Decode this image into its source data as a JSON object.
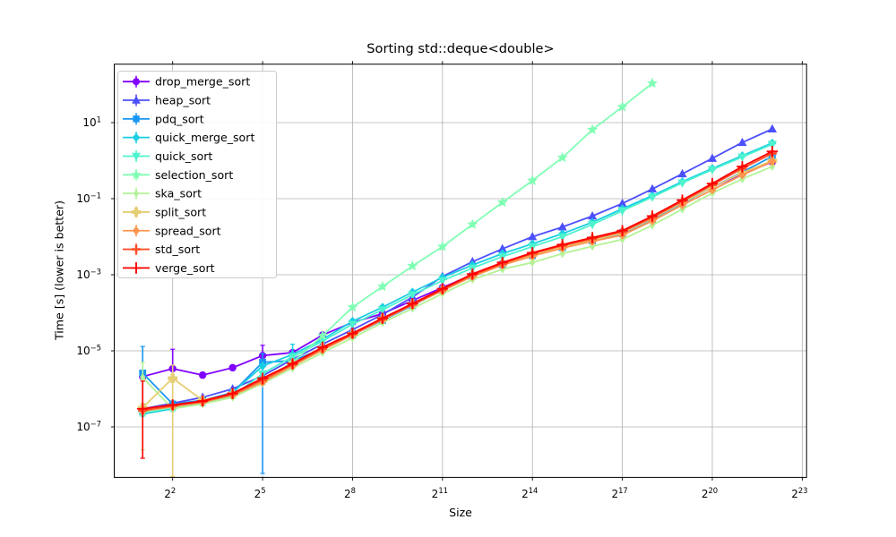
{
  "chart_data": {
    "type": "line",
    "title": "Sorting std::deque<double>",
    "xlabel": "Size",
    "ylabel": "Time [s] (lower is better)",
    "x_scale": "log2",
    "y_scale": "log10",
    "grid": true,
    "legend_position": "upper left",
    "x_tick_base": "2",
    "x_tick_exponents": [
      2,
      5,
      8,
      11,
      14,
      17,
      20,
      23
    ],
    "y_tick_base": "10",
    "y_tick_exponents": [
      1,
      -1,
      -3,
      -5,
      -7
    ],
    "x_range_log2": [
      0.05,
      23.14
    ],
    "y_range_log10": [
      -8.32,
      2.53
    ],
    "sizes_log2": [
      1,
      2,
      3,
      4,
      5,
      6,
      7,
      8,
      9,
      10,
      11,
      12,
      13,
      14,
      15,
      16,
      17,
      18,
      19,
      20,
      21,
      22
    ],
    "units": "seconds",
    "series": [
      {
        "name": "drop_merge_sort",
        "color": "#8000FF",
        "marker": "circle",
        "values": [
          2.1e-06,
          3.4e-06,
          2.3e-06,
          3.6e-06,
          7.5e-06,
          9e-06,
          2.6e-05,
          5.6e-05,
          9.5e-05,
          0.00021,
          0.00046,
          0.001,
          0.002,
          0.0034,
          0.0056,
          0.0086,
          0.0135,
          0.031,
          0.08,
          0.2,
          0.45,
          0.92
        ]
      },
      {
        "name": "heap_sort",
        "color": "#4D4FFC",
        "marker": "triangle-up",
        "values": [
          3e-07,
          4.2e-07,
          6e-07,
          1e-06,
          2.2e-06,
          6e-06,
          1.5e-05,
          3.6e-05,
          9e-05,
          0.00026,
          0.0009,
          0.0022,
          0.0048,
          0.01,
          0.018,
          0.035,
          0.075,
          0.18,
          0.45,
          1.15,
          3.0,
          6.8
        ]
      },
      {
        "name": "pdq_sort",
        "color": "#1A96F3",
        "marker": "square",
        "values": [
          2.6e-06,
          4e-07,
          5e-07,
          8e-07,
          5e-06,
          5.5e-06,
          1.15e-05,
          2.6e-05,
          6.3e-05,
          0.000155,
          0.0004,
          0.00092,
          0.00185,
          0.0032,
          0.0052,
          0.0079,
          0.012,
          0.029,
          0.076,
          0.2,
          0.5,
          1.3
        ]
      },
      {
        "name": "quick_merge_sort",
        "color": "#19CEE3",
        "marker": "diamond",
        "values": [
          2.2e-07,
          3e-07,
          4.5e-07,
          8e-07,
          4e-06,
          8e-06,
          2e-05,
          6e-05,
          0.00014,
          0.00035,
          0.00085,
          0.0018,
          0.0036,
          0.0065,
          0.012,
          0.024,
          0.054,
          0.12,
          0.28,
          0.62,
          1.35,
          2.9
        ]
      },
      {
        "name": "quick_sort",
        "color": "#4DF3CE",
        "marker": "triangle-down",
        "values": [
          2.4e-07,
          3.2e-07,
          4.2e-07,
          6.5e-07,
          2.5e-06,
          7e-06,
          1.8e-05,
          5e-05,
          0.00012,
          0.0003,
          0.0007,
          0.0015,
          0.003,
          0.0055,
          0.01,
          0.021,
          0.048,
          0.11,
          0.26,
          0.58,
          1.25,
          2.7
        ]
      },
      {
        "name": "selection_sort",
        "color": "#80FFB4",
        "marker": "star",
        "values": [
          2.4e-07,
          3.3e-07,
          4.5e-07,
          7e-07,
          1.6e-06,
          5e-06,
          2.5e-05,
          0.00014,
          0.00049,
          0.0017,
          0.0055,
          0.021,
          0.08,
          0.3,
          1.2,
          6.5,
          26.0,
          108.0
        ]
      },
      {
        "name": "ska_sort",
        "color": "#B3F396",
        "marker": "thin-diamond",
        "values": [
          2e-06,
          3e-07,
          4e-07,
          6e-07,
          1.4e-06,
          3.5e-06,
          9e-06,
          2.2e-05,
          5.5e-05,
          0.00013,
          0.00032,
          0.00075,
          0.0014,
          0.0021,
          0.0036,
          0.0056,
          0.0085,
          0.02,
          0.053,
          0.14,
          0.33,
          0.7
        ]
      },
      {
        "name": "split_sort",
        "color": "#E6CE74",
        "marker": "filled-plus",
        "values": [
          3.2e-07,
          1.9e-06,
          5e-07,
          7.5e-07,
          1.6e-06,
          4.5e-06,
          1.2e-05,
          2.8e-05,
          7e-05,
          0.00017,
          0.0004,
          0.00095,
          0.0019,
          0.0033,
          0.0054,
          0.0082,
          0.0125,
          0.03,
          0.079,
          0.2,
          0.48,
          1.0
        ]
      },
      {
        "name": "spread_sort",
        "color": "#FF964F",
        "marker": "diamond",
        "values": [
          2.6e-07,
          3.4e-07,
          4.4e-07,
          6.8e-07,
          1.5e-06,
          4e-06,
          1.05e-05,
          2.6e-05,
          6.5e-05,
          0.00016,
          0.00038,
          0.0009,
          0.0018,
          0.0031,
          0.005,
          0.0076,
          0.011,
          0.026,
          0.068,
          0.17,
          0.42,
          0.95
        ]
      },
      {
        "name": "std_sort",
        "color": "#FF4F28",
        "marker": "plus-bold",
        "values": [
          2.7e-07,
          3.6e-07,
          4.6e-07,
          7.2e-07,
          1.7e-06,
          4.4e-06,
          1.15e-05,
          2.75e-05,
          6.8e-05,
          0.000165,
          0.00041,
          0.00098,
          0.00195,
          0.0036,
          0.0058,
          0.0088,
          0.0135,
          0.032,
          0.085,
          0.23,
          0.62,
          1.55
        ]
      },
      {
        "name": "verge_sort",
        "color": "#FF0000",
        "marker": "plus",
        "values": [
          3e-07,
          3.8e-07,
          4.8e-07,
          7.6e-07,
          1.9e-06,
          4.6e-06,
          1.25e-05,
          2.9e-05,
          7.2e-05,
          0.000175,
          0.00043,
          0.00105,
          0.0021,
          0.0038,
          0.0062,
          0.0095,
          0.0145,
          0.035,
          0.092,
          0.25,
          0.7,
          1.75
        ]
      }
    ],
    "error_bars": [
      {
        "series": "pdq_sort",
        "size_log2": 1,
        "lo": 4e-07,
        "hi": 1.3e-05
      },
      {
        "series": "verge_sort",
        "size_log2": 1,
        "lo": 1.5e-08,
        "hi": 1.6e-06
      },
      {
        "series": "ska_sort",
        "size_log2": 1,
        "lo": 2.5e-08,
        "hi": 5e-06
      },
      {
        "series": "drop_merge_sort",
        "size_log2": 2,
        "lo": 2e-06,
        "hi": 1.1e-05
      },
      {
        "series": "split_sort",
        "size_log2": 2,
        "lo": 5e-09,
        "hi": 4.2e-06
      },
      {
        "series": "drop_merge_sort",
        "size_log2": 5,
        "lo": 5e-06,
        "hi": 1.4e-05
      },
      {
        "series": "pdq_sort",
        "size_log2": 5,
        "lo": 6e-09,
        "hi": 8.5e-06
      },
      {
        "series": "quick_merge_sort",
        "size_log2": 6,
        "lo": 4e-06,
        "hi": 1.5e-05
      }
    ],
    "colors": {
      "grid": "#b0b0b0",
      "spine": "#000000",
      "text": "#000000",
      "legend_border": "#cccccc",
      "background": "#ffffff"
    }
  }
}
